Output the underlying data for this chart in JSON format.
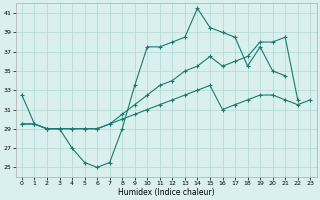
{
  "xlabel": "Humidex (Indice chaleur)",
  "xlim": [
    -0.5,
    23.5
  ],
  "ylim": [
    24,
    42
  ],
  "yticks": [
    25,
    27,
    29,
    31,
    33,
    35,
    37,
    39,
    41
  ],
  "xticks": [
    0,
    1,
    2,
    3,
    4,
    5,
    6,
    7,
    8,
    9,
    10,
    11,
    12,
    13,
    14,
    15,
    16,
    17,
    18,
    19,
    20,
    21,
    22,
    23
  ],
  "line_color": "#1a7a6e",
  "bg_color": "#d9f0ee",
  "grid_color": "#b0d8d4",
  "line1_y": [
    32.5,
    29.5,
    29.0,
    29.0,
    27.0,
    25.5,
    25.0,
    25.5,
    29.0,
    33.5,
    37.5,
    37.5,
    38.0,
    38.5,
    41.5,
    39.5,
    39.0,
    38.5,
    35.5,
    37.5,
    35.0,
    34.5,
    null,
    null
  ],
  "line2_y": [
    null,
    null,
    null,
    null,
    null,
    null,
    null,
    null,
    null,
    null,
    null,
    null,
    null,
    null,
    null,
    null,
    null,
    null,
    null,
    null,
    null,
    null,
    32.0,
    31.5
  ],
  "line3_y": [
    29.5,
    29.5,
    29.0,
    29.0,
    29.0,
    29.0,
    29.0,
    29.5,
    30.5,
    31.5,
    32.5,
    33.5,
    34.0,
    35.0,
    35.5,
    36.5,
    35.5,
    36.0,
    36.5,
    38.0,
    38.0,
    38.5,
    32.0,
    null
  ],
  "line4_y": [
    29.5,
    29.5,
    29.0,
    29.0,
    29.0,
    29.0,
    29.0,
    29.5,
    30.0,
    30.5,
    31.0,
    31.5,
    32.0,
    32.5,
    33.0,
    33.5,
    31.0,
    31.5,
    32.0,
    32.5,
    32.5,
    32.0,
    31.5,
    32.0
  ]
}
